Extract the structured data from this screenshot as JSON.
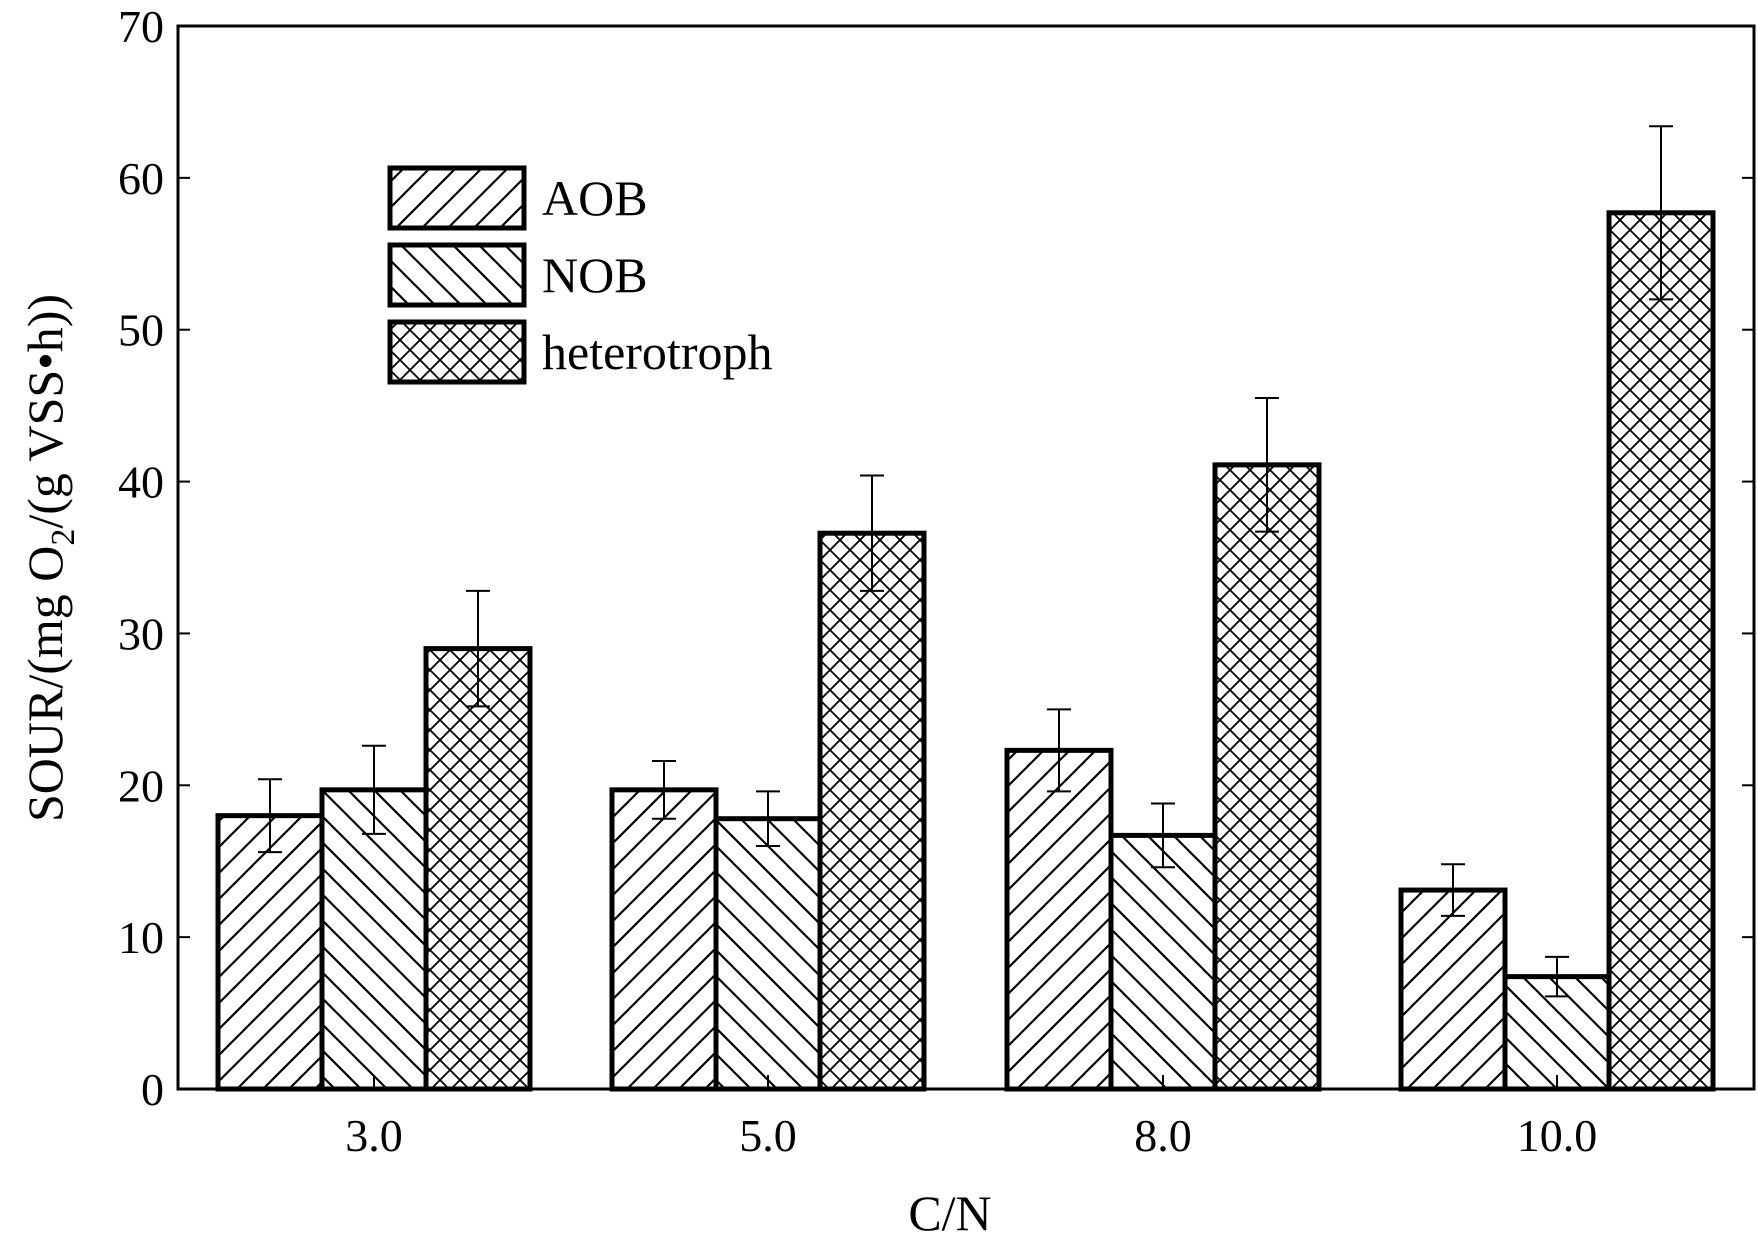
{
  "chart_data": {
    "type": "bar",
    "title": "",
    "xlabel": "C/N",
    "ylabel": "SOUR/(mg O2/(g VSS•h))",
    "ylabel_parts": {
      "pre": "SOUR/(mg O",
      "sub": "2",
      "post": "/(g VSS•h))"
    },
    "ylim": [
      0,
      70
    ],
    "yticks": [
      "0",
      "10",
      "20",
      "30",
      "40",
      "50",
      "60",
      "70"
    ],
    "categories": [
      "3.0",
      "5.0",
      "8.0",
      "10.0"
    ],
    "legend_position": "top-left",
    "series": [
      {
        "name": "AOB",
        "pattern": "forward-hatch",
        "values": [
          18.0,
          19.7,
          22.3,
          13.1
        ],
        "errors": [
          2.4,
          1.9,
          2.7,
          1.7
        ]
      },
      {
        "name": "NOB",
        "pattern": "back-hatch",
        "values": [
          19.7,
          17.8,
          16.7,
          7.4
        ],
        "errors": [
          2.9,
          1.8,
          2.1,
          1.3
        ]
      },
      {
        "name": "heterotroph",
        "pattern": "cross-hatch",
        "values": [
          29.0,
          36.6,
          41.1,
          57.7
        ],
        "errors": [
          3.8,
          3.8,
          4.4,
          5.7
        ]
      }
    ],
    "colors": {
      "bar_stroke": "#000000",
      "bar_fill": "#ffffff",
      "hatch": "#000000"
    }
  }
}
